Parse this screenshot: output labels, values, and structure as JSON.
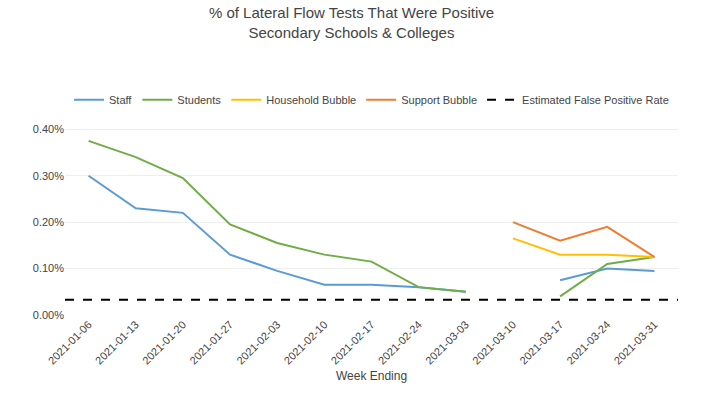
{
  "chart_data": {
    "type": "line",
    "title": "% of Lateral Flow Tests That Were Positive",
    "subtitle": "Secondary Schools & Colleges",
    "xlabel": "Week Ending",
    "categories": [
      "2021-01-06",
      "2021-01-13",
      "2021-01-20",
      "2021-01-27",
      "2021-02-03",
      "2021-02-10",
      "2021-02-17",
      "2021-02-24",
      "2021-03-03",
      "2021-03-10",
      "2021-03-17",
      "2021-03-24",
      "2021-03-31"
    ],
    "series": [
      {
        "name": "Staff",
        "color": "#5B9BD5",
        "values": [
          0.003,
          0.0023,
          0.0022,
          0.0013,
          0.00095,
          0.00065,
          0.00065,
          0.0006,
          0.0005,
          null,
          0.00075,
          0.001,
          0.00095
        ]
      },
      {
        "name": "Students",
        "color": "#70AD47",
        "values": [
          0.00375,
          0.0034,
          0.00295,
          0.00195,
          0.00155,
          0.0013,
          0.00115,
          0.0006,
          0.0005,
          null,
          0.0004,
          0.0011,
          0.00125
        ]
      },
      {
        "name": "Household Bubble",
        "color": "#FFC000",
        "values": [
          null,
          null,
          null,
          null,
          null,
          null,
          null,
          null,
          null,
          0.00165,
          0.0013,
          0.0013,
          0.00125
        ]
      },
      {
        "name": "Support Bubble",
        "color": "#ED7D31",
        "values": [
          null,
          null,
          null,
          null,
          null,
          null,
          null,
          null,
          null,
          0.002,
          0.0016,
          0.0019,
          0.00125
        ]
      },
      {
        "name": "Estimated False Positive Rate",
        "color": "#000000",
        "type": "hline",
        "line_style": "dashed",
        "value": 0.00033
      }
    ],
    "ylim": [
      0,
      0.0042
    ],
    "yticks": [
      {
        "value": 0.0,
        "label": "0.00%"
      },
      {
        "value": 0.001,
        "label": "0.10%"
      },
      {
        "value": 0.002,
        "label": "0.20%"
      },
      {
        "value": 0.003,
        "label": "0.30%"
      },
      {
        "value": 0.004,
        "label": "0.40%"
      }
    ],
    "grid": true,
    "legend": "top"
  }
}
